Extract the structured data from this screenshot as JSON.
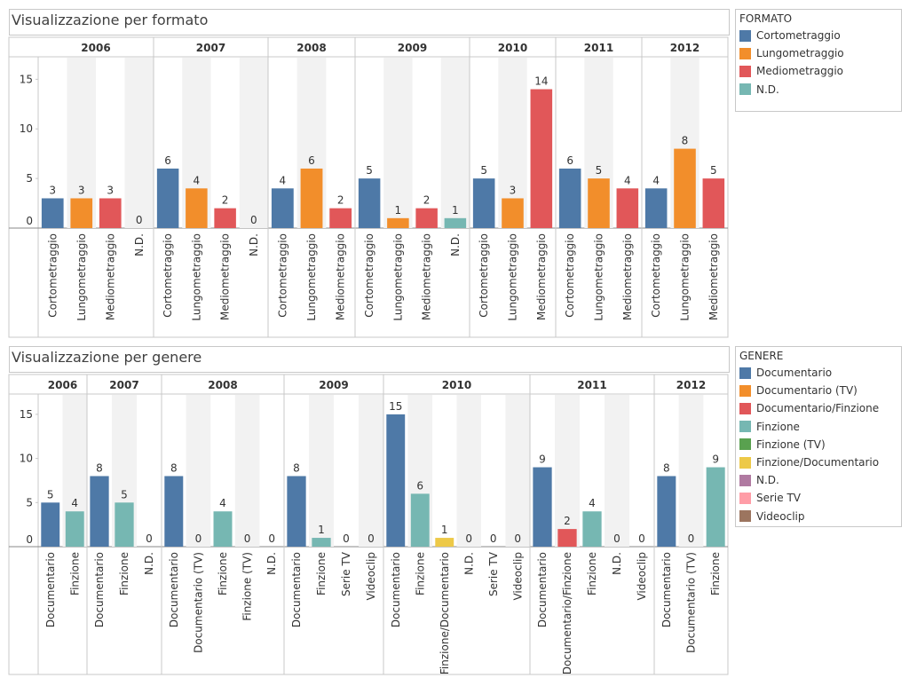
{
  "colors": {
    "Cortometraggio": "#4e79a7",
    "Lungometraggio": "#f28e2b",
    "Mediometraggio": "#e15759",
    "N.D.": "#76b7b2",
    "Documentario": "#4e79a7",
    "Documentario (TV)": "#f28e2b",
    "Documentario/Finzione": "#e15759",
    "Finzione": "#76b7b2",
    "Finzione (TV)": "#59a14f",
    "Finzione/Documentario": "#edc948",
    "Serie TV": "#ff9da7",
    "Videoclip": "#9c755f",
    "gene_N.D.": "#b07aa1"
  },
  "formato": {
    "title": "Visualizzazione per formato",
    "legend_title": "FORMATO",
    "legend_items": [
      "Cortometraggio",
      "Lungometraggio",
      "Mediometraggio",
      "N.D."
    ]
  },
  "genere": {
    "title": "Visualizzazione per genere",
    "legend_title": "GENERE",
    "legend_items": [
      "Documentario",
      "Documentario (TV)",
      "Documentario/Finzione",
      "Finzione",
      "Finzione (TV)",
      "Finzione/Documentario",
      "N.D.",
      "Serie TV",
      "Videoclip"
    ]
  },
  "chart_data": [
    {
      "type": "bar",
      "title": "Visualizzazione per formato",
      "ylim": [
        0,
        17
      ],
      "yticks": [
        0,
        5,
        10,
        15
      ],
      "groups": [
        {
          "year": "2006",
          "categories": [
            "Cortometraggio",
            "Lungometraggio",
            "Mediometraggio",
            "N.D."
          ],
          "values": [
            3,
            3,
            3,
            0
          ]
        },
        {
          "year": "2007",
          "categories": [
            "Cortometraggio",
            "Lungometraggio",
            "Mediometraggio",
            "N.D."
          ],
          "values": [
            6,
            4,
            2,
            0
          ]
        },
        {
          "year": "2008",
          "categories": [
            "Cortometraggio",
            "Lungometraggio",
            "Mediometraggio"
          ],
          "values": [
            4,
            6,
            2
          ]
        },
        {
          "year": "2009",
          "categories": [
            "Cortometraggio",
            "Lungometraggio",
            "Mediometraggio",
            "N.D."
          ],
          "values": [
            5,
            1,
            2,
            1
          ]
        },
        {
          "year": "2010",
          "categories": [
            "Cortometraggio",
            "Lungometraggio",
            "Mediometraggio"
          ],
          "values": [
            5,
            3,
            14
          ]
        },
        {
          "year": "2011",
          "categories": [
            "Cortometraggio",
            "Lungometraggio",
            "Mediometraggio"
          ],
          "values": [
            6,
            5,
            4
          ]
        },
        {
          "year": "2012",
          "categories": [
            "Cortometraggio",
            "Lungometraggio",
            "Mediometraggio"
          ],
          "values": [
            4,
            8,
            5
          ]
        }
      ]
    },
    {
      "type": "bar",
      "title": "Visualizzazione per genere",
      "ylim": [
        0,
        17
      ],
      "yticks": [
        0,
        5,
        10,
        15
      ],
      "groups": [
        {
          "year": "2006",
          "categories": [
            "Documentario",
            "Finzione"
          ],
          "values": [
            5,
            4
          ]
        },
        {
          "year": "2007",
          "categories": [
            "Documentario",
            "Finzione",
            "N.D."
          ],
          "values": [
            8,
            5,
            0
          ]
        },
        {
          "year": "2008",
          "categories": [
            "Documentario",
            "Documentario (TV)",
            "Finzione",
            "Finzione (TV)",
            "N.D."
          ],
          "values": [
            8,
            0,
            4,
            0,
            0
          ]
        },
        {
          "year": "2009",
          "categories": [
            "Documentario",
            "Finzione",
            "Serie TV",
            "Videoclip"
          ],
          "values": [
            8,
            1,
            0,
            0
          ]
        },
        {
          "year": "2010",
          "categories": [
            "Documentario",
            "Finzione",
            "Finzione/Documentario",
            "N.D.",
            "Serie TV",
            "Videoclip"
          ],
          "values": [
            15,
            6,
            1,
            0,
            0,
            0
          ]
        },
        {
          "year": "2011",
          "categories": [
            "Documentario",
            "Documentario/Finzione",
            "Finzione",
            "N.D.",
            "Videoclip"
          ],
          "values": [
            9,
            2,
            4,
            0,
            0
          ]
        },
        {
          "year": "2012",
          "categories": [
            "Documentario",
            "Documentario (TV)",
            "Finzione"
          ],
          "values": [
            8,
            0,
            9
          ]
        }
      ]
    }
  ]
}
